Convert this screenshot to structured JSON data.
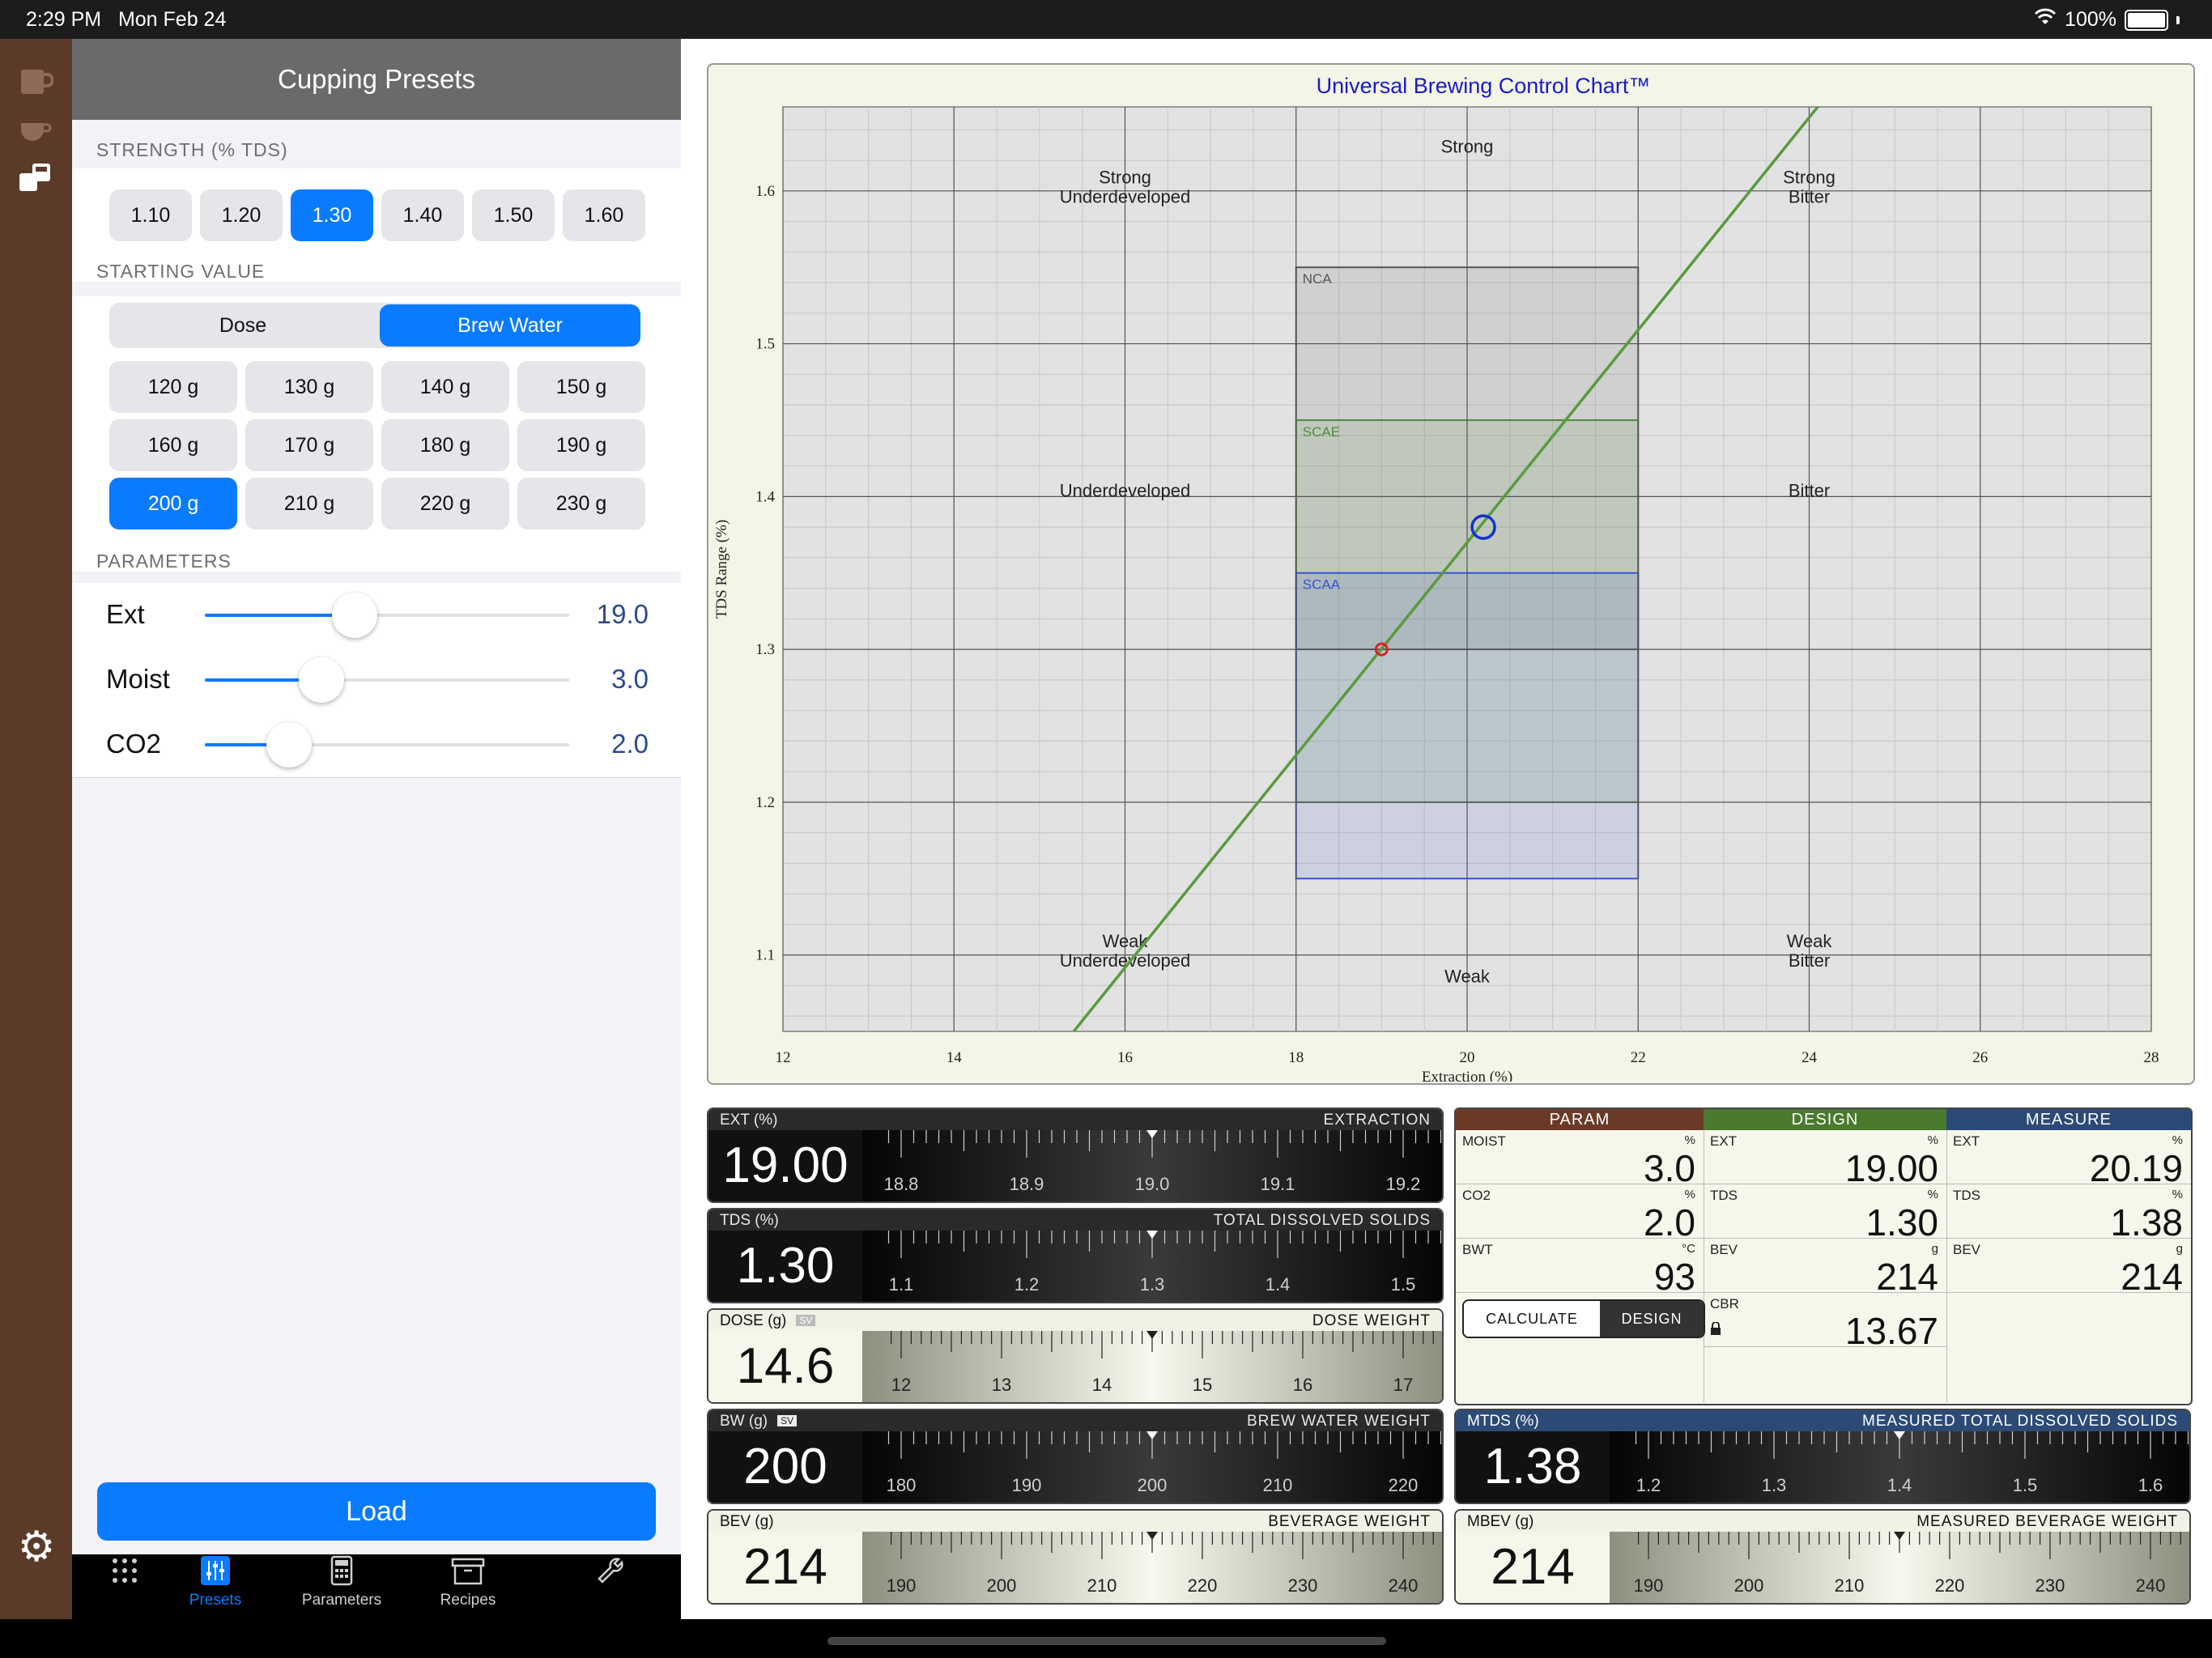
{
  "status": {
    "time": "2:29 PM",
    "date": "Mon Feb 24",
    "battery": "100%"
  },
  "rail_icons": [
    "cup-icon",
    "coffee-cup-icon",
    "brew-icon"
  ],
  "panel": {
    "title": "Cupping Presets",
    "strength": {
      "label": "STRENGTH (% TDS)",
      "options": [
        "1.10",
        "1.20",
        "1.30",
        "1.40",
        "1.50",
        "1.60"
      ],
      "selected": "1.30"
    },
    "starting": {
      "label": "STARTING VALUE",
      "modes": [
        "Dose",
        "Brew Water"
      ],
      "selected_mode": "Brew Water",
      "amounts": [
        "120 g",
        "130 g",
        "140 g",
        "150 g",
        "160 g",
        "170 g",
        "180 g",
        "190 g",
        "200 g",
        "210 g",
        "220 g",
        "230 g"
      ],
      "selected_amount": "200 g"
    },
    "parameters": {
      "label": "PARAMETERS",
      "rows": [
        {
          "name": "Ext",
          "value": "19.0",
          "level": 0.41
        },
        {
          "name": "Moist",
          "value": "3.0",
          "level": 0.32
        },
        {
          "name": "CO2",
          "value": "2.0",
          "level": 0.23
        }
      ]
    },
    "load_label": "Load",
    "tabs": [
      {
        "label": "",
        "icon": "grid-icon"
      },
      {
        "label": "Presets",
        "icon": "sliders-icon"
      },
      {
        "label": "Parameters",
        "icon": "calculator-icon"
      },
      {
        "label": "Recipes",
        "icon": "archive-box-icon"
      },
      {
        "label": "",
        "icon": "wrench-icon"
      }
    ],
    "selected_tab": "Presets"
  },
  "chart_data": {
    "type": "scatter",
    "title": "Universal Brewing Control Chart™",
    "xlabel": "Extraction (%)",
    "ylabel": "TDS Range (%)",
    "xlim": [
      12,
      28
    ],
    "ylim": [
      1.05,
      1.655
    ],
    "x_ticks": [
      "12",
      "14",
      "16",
      "18",
      "20",
      "22",
      "24",
      "26",
      "28"
    ],
    "y_ticks": [
      "1.1",
      "1.2",
      "1.3",
      "1.4",
      "1.5",
      "1.6"
    ],
    "grid": true,
    "regions": [
      {
        "name": "NCA",
        "x": [
          18,
          22
        ],
        "y": [
          1.3,
          1.55
        ],
        "color": "#555555"
      },
      {
        "name": "SCAE",
        "x": [
          18,
          22
        ],
        "y": [
          1.2,
          1.45
        ],
        "color": "#4f8a3a"
      },
      {
        "name": "SCAA",
        "x": [
          18,
          22
        ],
        "y": [
          1.15,
          1.35
        ],
        "color": "#3355cc"
      }
    ],
    "zone_labels": [
      {
        "text": "Strong",
        "x": 20,
        "y": 1.625
      },
      {
        "text": "Strong\nUnderdeveloped",
        "x": 16,
        "y": 1.605
      },
      {
        "text": "Strong\nBitter",
        "x": 24,
        "y": 1.605
      },
      {
        "text": "Underdeveloped",
        "x": 16,
        "y": 1.4
      },
      {
        "text": "Bitter",
        "x": 24,
        "y": 1.4
      },
      {
        "text": "Weak\nUnderdeveloped",
        "x": 16,
        "y": 1.105
      },
      {
        "text": "Weak\nBitter",
        "x": 24,
        "y": 1.105
      },
      {
        "text": "Weak",
        "x": 20,
        "y": 1.082
      }
    ],
    "brew_ratio_line": {
      "points": [
        [
          15.4,
          1.05
        ],
        [
          24.1,
          1.655
        ]
      ],
      "color": "#5a9a3e"
    },
    "design_point": {
      "x": 19.0,
      "y": 1.3,
      "color": "#dd2222"
    },
    "measured_point": {
      "x": 20.19,
      "y": 1.38,
      "color": "#1133cc"
    }
  },
  "gauges": {
    "ext": {
      "label": "EXT (%)",
      "title": "EXTRACTION",
      "value": "19.00",
      "ticks": [
        "18.8",
        "18.9",
        "19.0",
        "19.1",
        "19.2"
      ]
    },
    "tds": {
      "label": "TDS (%)",
      "title": "TOTAL DISSOLVED SOLIDS",
      "value": "1.30",
      "ticks": [
        "1.1",
        "1.2",
        "1.3",
        "1.4",
        "1.5"
      ]
    },
    "dose": {
      "label": "DOSE (g)",
      "badge": "SV",
      "title": "DOSE WEIGHT",
      "value": "14.6",
      "ticks": [
        "12",
        "13",
        "14",
        "15",
        "16",
        "17"
      ]
    },
    "bw": {
      "label": "BW (g)",
      "badge": "SV",
      "title": "BREW WATER WEIGHT",
      "value": "200",
      "ticks": [
        "180",
        "190",
        "200",
        "210",
        "220"
      ]
    },
    "bev": {
      "label": "BEV (g)",
      "title": "BEVERAGE WEIGHT",
      "value": "214",
      "ticks": [
        "190",
        "200",
        "210",
        "220",
        "230",
        "240"
      ]
    },
    "mtds": {
      "label": "MTDS (%)",
      "title": "MEASURED TOTAL DISSOLVED SOLIDS",
      "value": "1.38",
      "ticks": [
        "1.2",
        "1.3",
        "1.4",
        "1.5",
        "1.6"
      ]
    },
    "mbev": {
      "label": "MBEV (g)",
      "title": "MEASURED BEVERAGE WEIGHT",
      "value": "214",
      "ticks": [
        "190",
        "200",
        "210",
        "220",
        "230",
        "240"
      ]
    }
  },
  "table": {
    "headers": {
      "param": "PARAM",
      "design": "DESIGN",
      "measure": "MEASURE"
    },
    "colors": {
      "param": "#6b3a26",
      "design": "#4a7a2e",
      "measure": "#2c4a76"
    },
    "param": [
      {
        "label": "MOIST",
        "unit": "%",
        "value": "3.0"
      },
      {
        "label": "CO2",
        "unit": "%",
        "value": "2.0"
      },
      {
        "label": "BWT",
        "unit": "°C",
        "value": "93"
      }
    ],
    "design": [
      {
        "label": "EXT",
        "unit": "%",
        "value": "19.00"
      },
      {
        "label": "TDS",
        "unit": "%",
        "value": "1.30"
      },
      {
        "label": "BEV",
        "unit": "g",
        "value": "214"
      },
      {
        "label": "CBR",
        "unit": "",
        "value": "13.67"
      }
    ],
    "measure": [
      {
        "label": "EXT",
        "unit": "%",
        "value": "20.19"
      },
      {
        "label": "TDS",
        "unit": "%",
        "value": "1.38"
      },
      {
        "label": "BEV",
        "unit": "g",
        "value": "214"
      }
    ],
    "toggle": {
      "calculate": "CALCULATE",
      "design": "DESIGN"
    }
  }
}
